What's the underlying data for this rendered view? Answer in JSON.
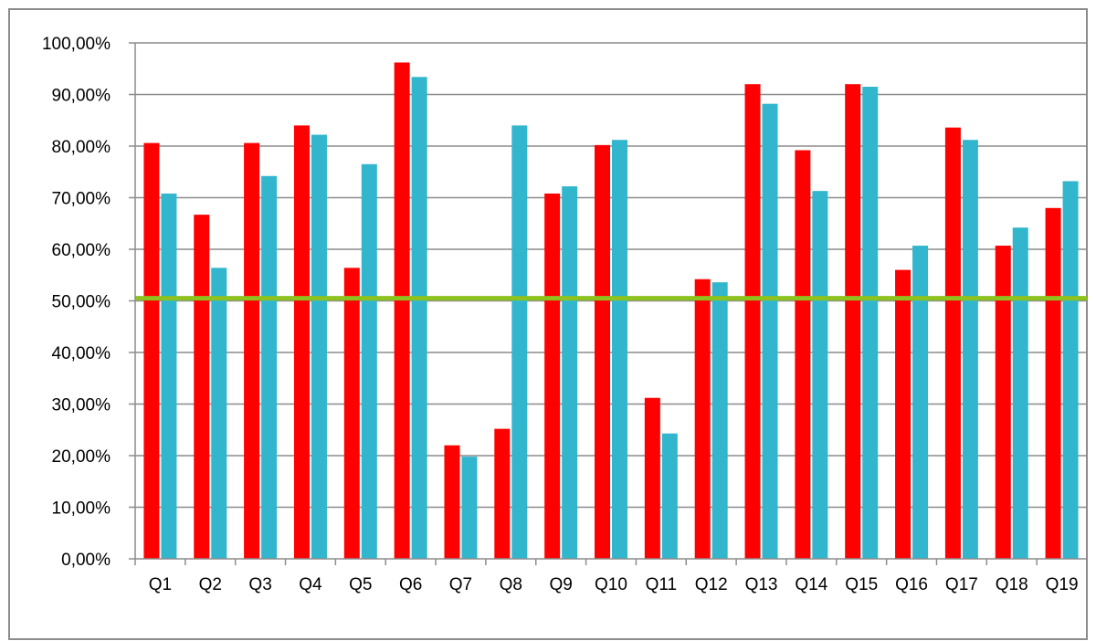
{
  "chart_data": {
    "type": "bar",
    "title": "",
    "xlabel": "",
    "ylabel": "",
    "categories": [
      "Q1",
      "Q2",
      "Q3",
      "Q4",
      "Q5",
      "Q6",
      "Q7",
      "Q8",
      "Q9",
      "Q10",
      "Q11",
      "Q12",
      "Q13",
      "Q14",
      "Q15",
      "Q16",
      "Q17",
      "Q18",
      "Q19"
    ],
    "series": [
      {
        "color": "#ff0000",
        "values": [
          80.6,
          66.7,
          80.6,
          84.0,
          56.4,
          96.2,
          22.0,
          25.2,
          70.8,
          80.2,
          31.2,
          54.2,
          92.0,
          79.2,
          92.0,
          56.0,
          83.6,
          60.7,
          68.0
        ]
      },
      {
        "color": "#31b6ce",
        "values": [
          70.8,
          56.4,
          74.2,
          82.2,
          76.5,
          93.4,
          19.8,
          84.0,
          72.2,
          81.2,
          24.3,
          53.6,
          88.2,
          71.3,
          91.5,
          60.7,
          81.2,
          64.2,
          73.2
        ]
      }
    ],
    "reference_line": {
      "value": 50.5,
      "color": "#8dc21f"
    },
    "ylim": [
      0,
      100
    ],
    "yticks": [
      0,
      10,
      20,
      30,
      40,
      50,
      60,
      70,
      80,
      90,
      100
    ],
    "ytick_labels": [
      "0,00%",
      "10,00%",
      "20,00%",
      "30,00%",
      "40,00%",
      "50,00%",
      "60,00%",
      "70,00%",
      "80,00%",
      "90,00%",
      "100,00%"
    ],
    "grid": true,
    "legend": "none"
  }
}
